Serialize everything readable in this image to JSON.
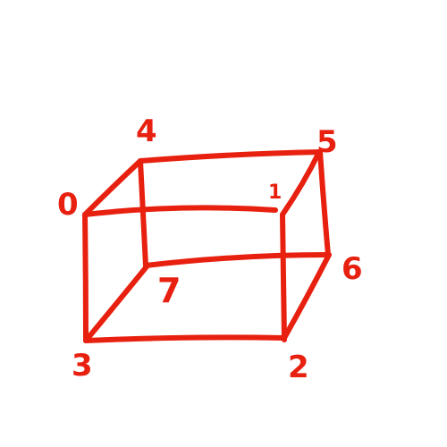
{
  "drawing": {
    "stroke_color": "#e8200f",
    "label_color": "#e8200f",
    "background_color": "#ffffff",
    "vertices": [
      {
        "id": "v0",
        "label": "0"
      },
      {
        "id": "v1",
        "label": "1"
      },
      {
        "id": "v2",
        "label": "2"
      },
      {
        "id": "v3",
        "label": "3"
      },
      {
        "id": "v4",
        "label": "4"
      },
      {
        "id": "v5",
        "label": "5"
      },
      {
        "id": "v6",
        "label": "6"
      },
      {
        "id": "v7",
        "label": "7"
      }
    ],
    "edges": [
      {
        "name": "edge-0-1",
        "from": "0",
        "to": "1"
      },
      {
        "name": "edge-0-3",
        "from": "0",
        "to": "3"
      },
      {
        "name": "edge-0-4",
        "from": "0",
        "to": "4"
      },
      {
        "name": "edge-1-2",
        "from": "1",
        "to": "2"
      },
      {
        "name": "edge-1-5",
        "from": "1",
        "to": "5"
      },
      {
        "name": "edge-2-3",
        "from": "2",
        "to": "3"
      },
      {
        "name": "edge-2-6",
        "from": "2",
        "to": "6"
      },
      {
        "name": "edge-3-7",
        "from": "3",
        "to": "7"
      },
      {
        "name": "edge-4-5",
        "from": "4",
        "to": "5"
      },
      {
        "name": "edge-4-7",
        "from": "4",
        "to": "7"
      },
      {
        "name": "edge-5-6",
        "from": "5",
        "to": "6"
      },
      {
        "name": "edge-6-7",
        "from": "6",
        "to": "7"
      }
    ]
  }
}
